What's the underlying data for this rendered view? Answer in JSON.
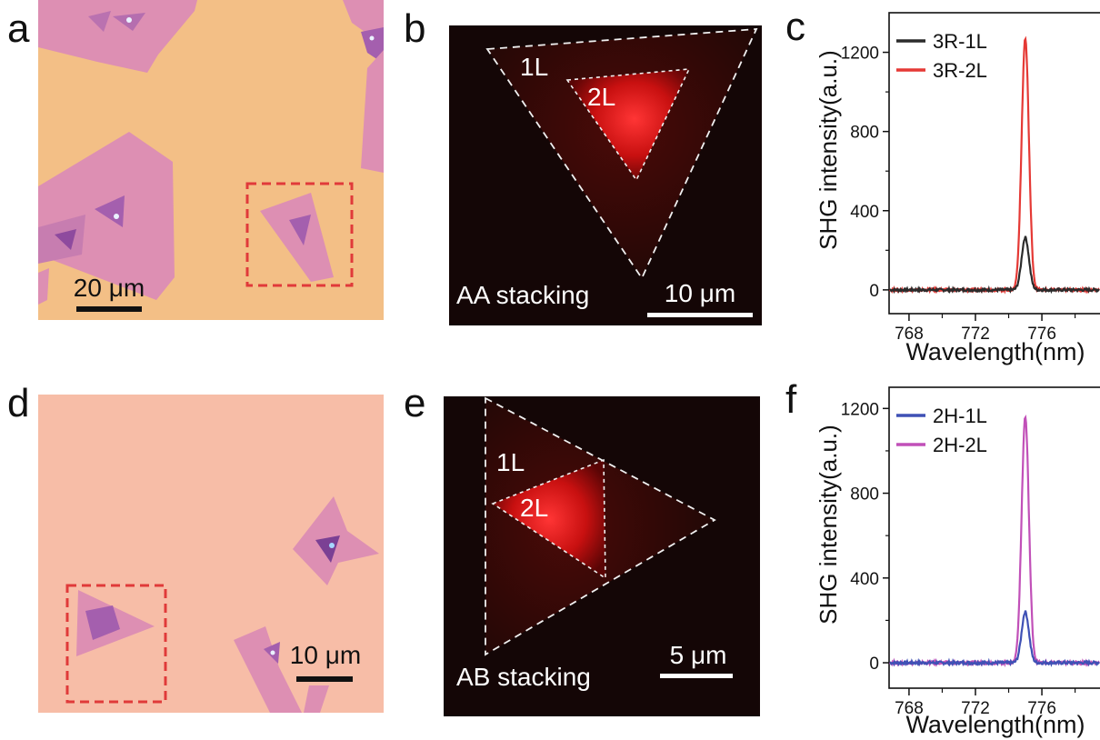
{
  "figure": {
    "panels": {
      "a": {
        "letter": "a",
        "scalebar": "20 μm"
      },
      "b": {
        "letter": "b",
        "scalebar": "10 μm",
        "stacking": "AA stacking",
        "label_1L": "1L",
        "label_2L": "2L"
      },
      "c": {
        "letter": "c"
      },
      "d": {
        "letter": "d",
        "scalebar": "10 μm"
      },
      "e": {
        "letter": "e",
        "scalebar": "5 μm",
        "stacking": "AB stacking",
        "label_1L": "1L",
        "label_2L": "2L"
      },
      "f": {
        "letter": "f"
      }
    },
    "colors": {
      "substrate_a": "#f3bf86",
      "substrate_d": "#f7bda7",
      "flake_1L": "#dd8fb3",
      "flake_2L": "#a45fae",
      "dashed_box": "#e03a3a",
      "shg_glow": "#ff2a2a",
      "series_3R_1L": "#2b2b2b",
      "series_3R_2L": "#e53935",
      "series_2H_1L": "#3f51b5",
      "series_2H_2L": "#c150b8"
    }
  },
  "chart_data": [
    {
      "type": "line",
      "panel": "c",
      "xlabel": "Wavelength(nm)",
      "ylabel": "SHG intensity(a.u.)",
      "xticks": [
        768,
        772,
        776
      ],
      "yticks": [
        0,
        400,
        800,
        1200
      ],
      "xlim": [
        766.8,
        779.5
      ],
      "ylim": [
        -120,
        1400
      ],
      "legend_position": "top-left",
      "series": [
        {
          "name": "3R-1L",
          "color": "#2b2b2b",
          "peak_x": 775.0,
          "peak_y": 265,
          "width": 0.22
        },
        {
          "name": "3R-2L",
          "color": "#e53935",
          "peak_x": 775.0,
          "peak_y": 1270,
          "width": 0.22
        }
      ]
    },
    {
      "type": "line",
      "panel": "f",
      "xlabel": "Wavelength(nm)",
      "ylabel": "SHG intensity(a.u.)",
      "xticks": [
        768,
        772,
        776
      ],
      "yticks": [
        0,
        400,
        800,
        1200
      ],
      "xlim": [
        766.8,
        779.5
      ],
      "ylim": [
        -120,
        1300
      ],
      "legend_position": "top-left",
      "series": [
        {
          "name": "2H-1L",
          "color": "#3f51b5",
          "peak_x": 775.0,
          "peak_y": 240,
          "width": 0.22
        },
        {
          "name": "2H-2L",
          "color": "#c150b8",
          "peak_x": 775.0,
          "peak_y": 1160,
          "width": 0.22
        }
      ]
    }
  ]
}
